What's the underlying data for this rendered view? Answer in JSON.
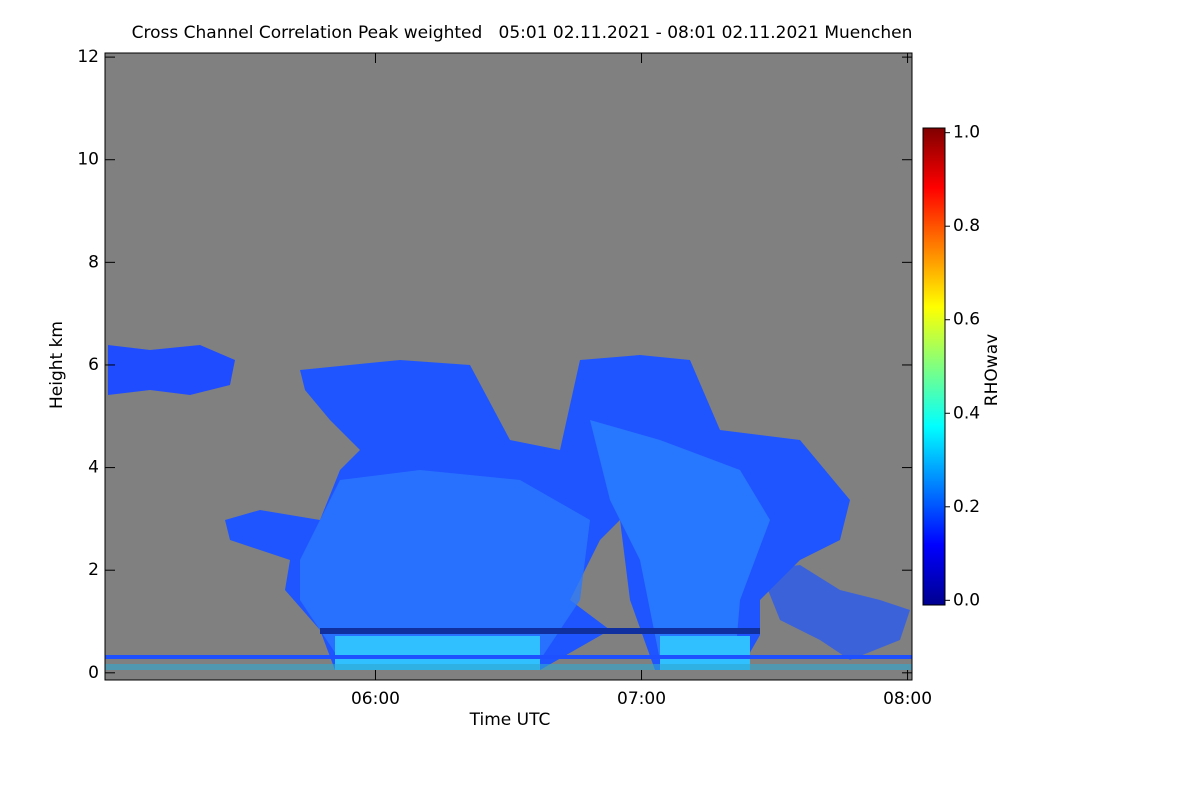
{
  "chart_data": {
    "type": "heatmap",
    "title": "Cross Channel Correlation Peak weighted   05:01 02.11.2021 - 08:01 02.11.2021 Muenchen",
    "xlabel": "Time UTC",
    "ylabel": "Height km",
    "xlim": [
      299,
      481
    ],
    "xticks": [
      {
        "value": 360,
        "label": "06:00"
      },
      {
        "value": 420,
        "label": "07:00"
      },
      {
        "value": 480,
        "label": "08:00"
      }
    ],
    "ylim": [
      -0.14,
      12.08
    ],
    "yticks": [
      0,
      2,
      4,
      6,
      8,
      10,
      12
    ],
    "background": "#808080",
    "colorbar": {
      "label": "RHOwav",
      "lim": [
        -0.01,
        1.01
      ],
      "ticks": [
        {
          "value": 0,
          "label": "0.0"
        },
        {
          "value": 0.2,
          "label": "0.2"
        },
        {
          "value": 0.4,
          "label": "0.4"
        },
        {
          "value": 0.6,
          "label": "0.6"
        },
        {
          "value": 0.8,
          "label": "0.8"
        },
        {
          "value": 1,
          "label": "1.0"
        }
      ],
      "colormap": [
        "#00008f",
        "#0000ff",
        "#0080ff",
        "#00ffff",
        "#80ff80",
        "#ffff00",
        "#ff8000",
        "#ff0000",
        "#800000"
      ]
    }
  }
}
